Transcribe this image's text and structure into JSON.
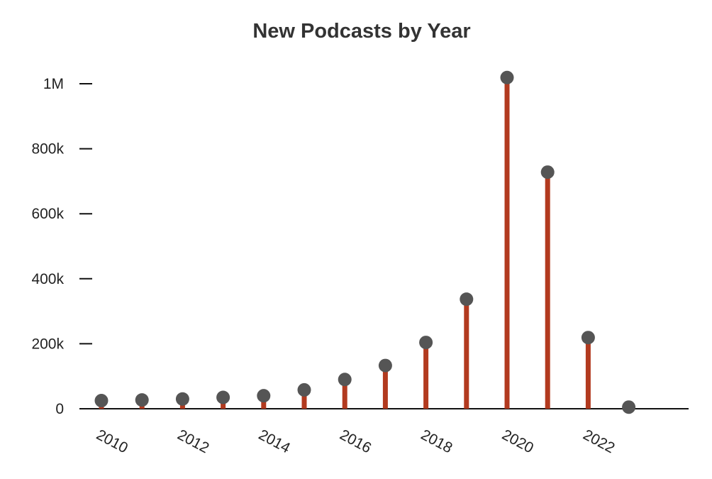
{
  "chart_data": {
    "type": "lollipop",
    "title": "New Podcasts by Year",
    "xlabel": "",
    "ylabel": "",
    "x": [
      2010,
      2011,
      2012,
      2013,
      2014,
      2015,
      2016,
      2017,
      2018,
      2019,
      2020,
      2021,
      2022,
      2023
    ],
    "values": [
      25000,
      27000,
      30000,
      35000,
      40000,
      58000,
      90000,
      133000,
      204000,
      337000,
      1019000,
      728000,
      219000,
      5000
    ],
    "x_ticks": [
      "2010",
      "2012",
      "2014",
      "2016",
      "2018",
      "2020",
      "2022"
    ],
    "y_ticks": [
      {
        "value": 0,
        "label": "0"
      },
      {
        "value": 200000,
        "label": "200k"
      },
      {
        "value": 400000,
        "label": "400k"
      },
      {
        "value": 600000,
        "label": "600k"
      },
      {
        "value": 800000,
        "label": "800k"
      },
      {
        "value": 1000000,
        "label": "1M"
      }
    ],
    "ylim": [
      0,
      1000000
    ],
    "grid": false,
    "colors": {
      "stem": "#b23a1f",
      "dot": "#555555",
      "axis": "#111111"
    }
  }
}
